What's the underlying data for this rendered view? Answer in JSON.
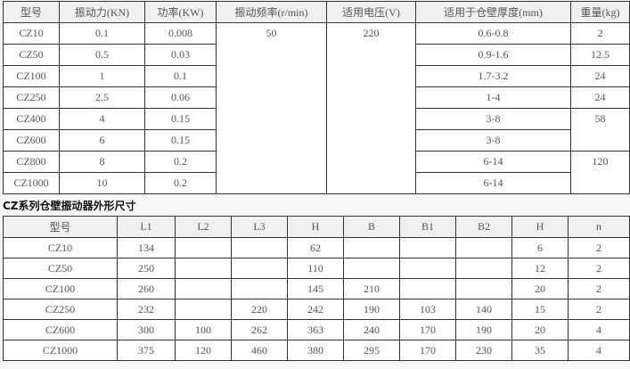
{
  "specs": {
    "headers": [
      "型号",
      "振动力(KN)",
      "功率(KW)",
      "振动频率(r/min)",
      "适用电压(V)",
      "适用于仓壁厚度(mm)",
      "重量(kg)"
    ],
    "frequency": "50",
    "voltage": "220",
    "rows": [
      {
        "model": "CZ10",
        "force": "0.1",
        "power": "0.008",
        "thickness": "0.6-0.8"
      },
      {
        "model": "CZ50",
        "force": "0.5",
        "power": "0.03",
        "thickness": "0.9-1.6"
      },
      {
        "model": "CZ100",
        "force": "1",
        "power": "0.1",
        "thickness": "1.7-3.2"
      },
      {
        "model": "CZ250",
        "force": "2.5",
        "power": "0.06",
        "thickness": "1-4"
      },
      {
        "model": "CZ400",
        "force": "4",
        "power": "0.15",
        "thickness": "3-8"
      },
      {
        "model": "CZ600",
        "force": "6",
        "power": "0.15",
        "thickness": "3-8"
      },
      {
        "model": "CZ800",
        "force": "8",
        "power": "0.2",
        "thickness": "6-14"
      },
      {
        "model": "CZ1000",
        "force": "10",
        "power": "0.2",
        "thickness": "6-14"
      }
    ],
    "weights": [
      "2",
      "12.5",
      "24",
      "24",
      "58",
      "120"
    ]
  },
  "dims_title": "CZ系列仓壁振动器外形尺寸",
  "dims": {
    "headers": [
      "型号",
      "L1",
      "L2",
      "L3",
      "H",
      "B",
      "B1",
      "B2",
      "H",
      "n"
    ],
    "rows": [
      [
        "CZ10",
        "134",
        "",
        "",
        "62",
        "",
        "",
        "",
        "6",
        "2"
      ],
      [
        "CZ50",
        "250",
        "",
        "",
        "110",
        "",
        "",
        "",
        "12",
        "2"
      ],
      [
        "CZ100",
        "260",
        "",
        "",
        "145",
        "210",
        "",
        "",
        "20",
        "2"
      ],
      [
        "CZ250",
        "232",
        "",
        "220",
        "242",
        "190",
        "103",
        "140",
        "15",
        "2"
      ],
      [
        "CZ600",
        "300",
        "100",
        "262",
        "363",
        "240",
        "170",
        "190",
        "20",
        "4"
      ],
      [
        "CZ1000",
        "375",
        "120",
        "460",
        "380",
        "295",
        "170",
        "230",
        "35",
        "4"
      ]
    ]
  }
}
